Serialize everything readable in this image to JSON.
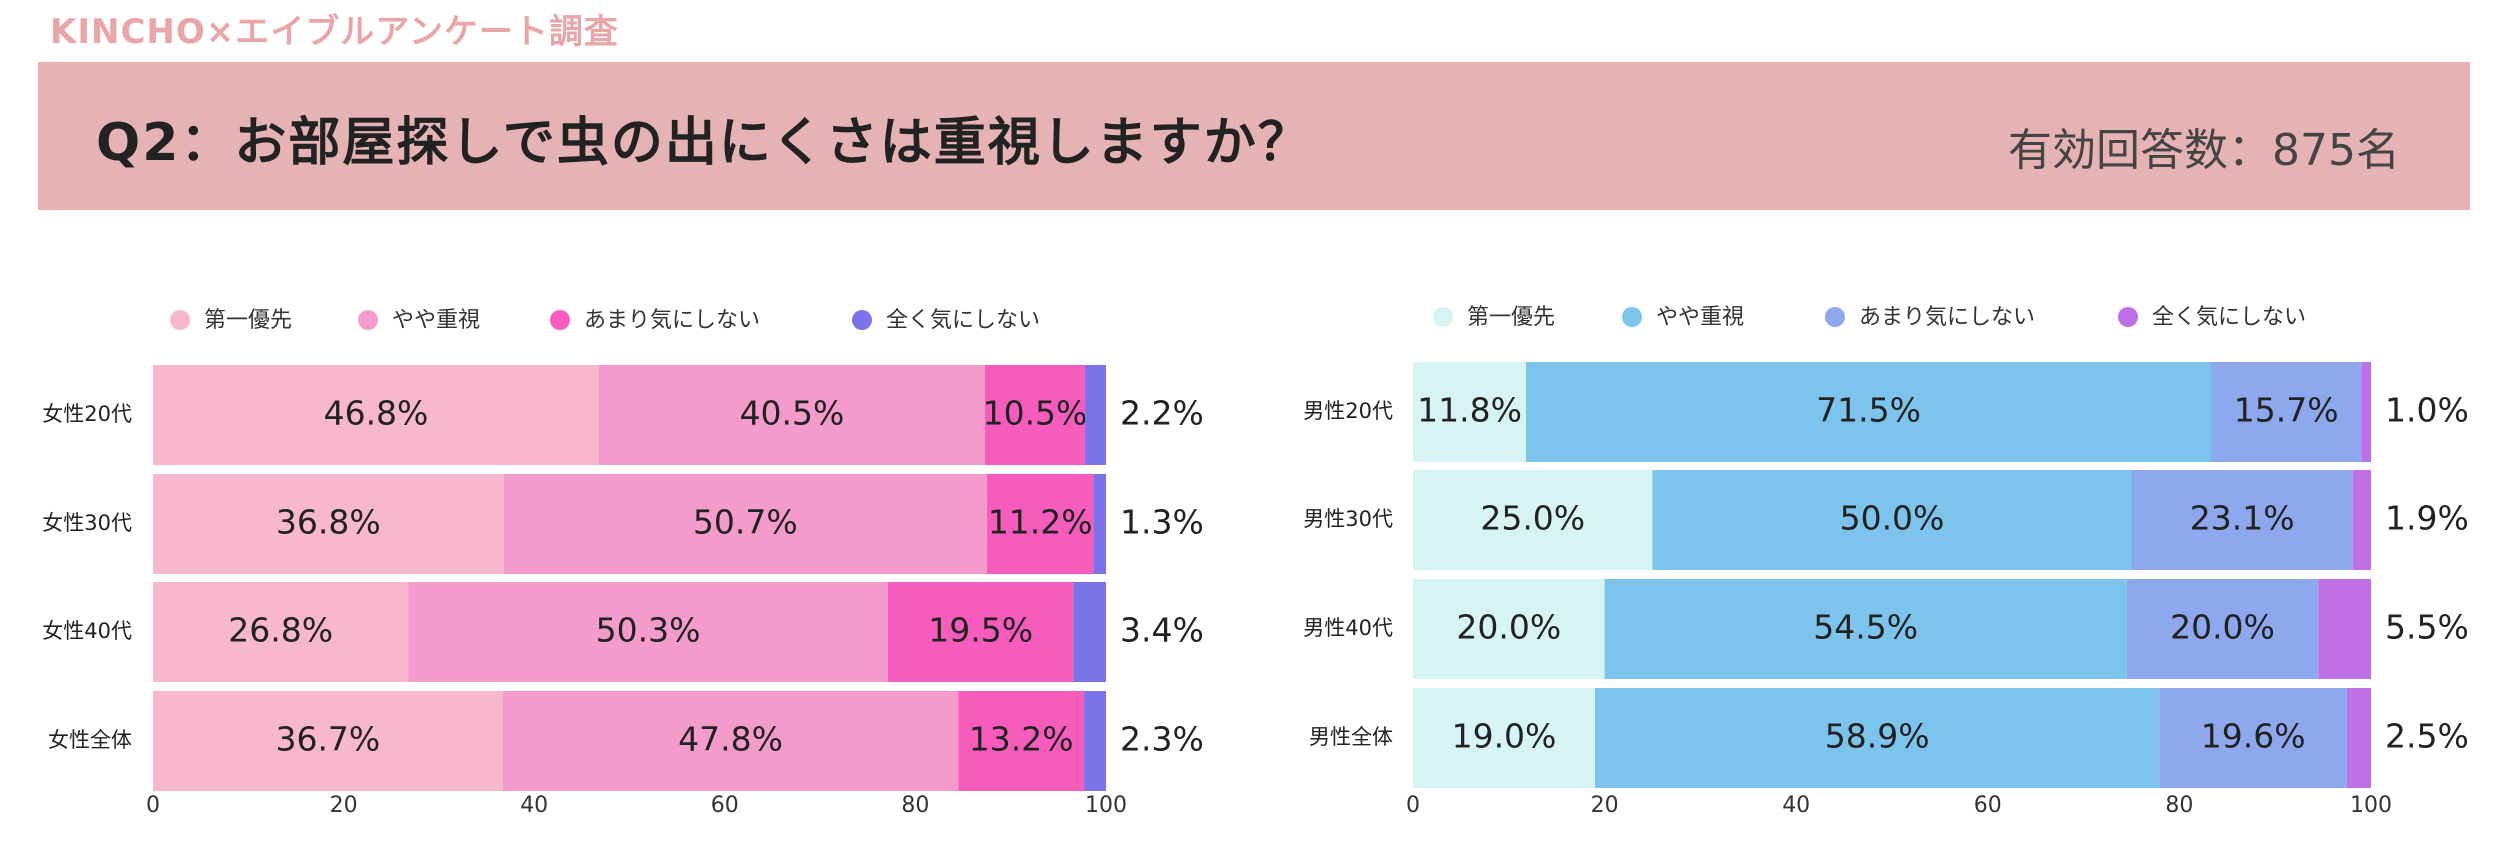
{
  "header": {
    "brand": "KINCHO×エイブルアンケート調査",
    "question": "Q2：お部屋探しで虫の出にくさは重視しますか？",
    "respondents": "有効回答数：875名"
  },
  "chart_data": [
    {
      "type": "bar",
      "orientation": "horizontal",
      "stacked": true,
      "categories": [
        "女性20代",
        "女性30代",
        "女性40代",
        "女性全体"
      ],
      "series": [
        {
          "name": "第一優先",
          "color": "#f8b8cc",
          "values": [
            46.8,
            36.8,
            26.8,
            36.7
          ]
        },
        {
          "name": "やや重視",
          "color": "#f39ccb",
          "values": [
            40.5,
            50.7,
            50.3,
            47.8
          ]
        },
        {
          "name": "あまり気にしない",
          "color": "#f65cbc",
          "values": [
            10.5,
            11.2,
            19.5,
            13.2
          ]
        },
        {
          "name": "全く気にしない",
          "color": "#7b73ea",
          "values": [
            2.2,
            1.3,
            3.4,
            2.3
          ]
        }
      ],
      "xlim": [
        0,
        100
      ],
      "xticks": [
        0,
        20,
        40,
        60,
        80,
        100
      ],
      "legend": "top",
      "grid": false
    },
    {
      "type": "bar",
      "orientation": "horizontal",
      "stacked": true,
      "categories": [
        "男性20代",
        "男性30代",
        "男性40代",
        "男性全体"
      ],
      "series": [
        {
          "name": "第一優先",
          "color": "#d6f4f4",
          "values": [
            11.8,
            25.0,
            20.0,
            19.0
          ]
        },
        {
          "name": "やや重視",
          "color": "#7cc4ec",
          "values": [
            71.5,
            50.0,
            54.5,
            58.9
          ]
        },
        {
          "name": "あまり気にしない",
          "color": "#8ea8ee",
          "values": [
            15.7,
            23.1,
            20.0,
            19.6
          ]
        },
        {
          "name": "全く気にしない",
          "color": "#c070e6",
          "values": [
            1.0,
            1.9,
            5.5,
            2.5
          ]
        }
      ],
      "xlim": [
        0,
        100
      ],
      "xticks": [
        0,
        20,
        40,
        60,
        80,
        100
      ],
      "legend": "top",
      "grid": false
    }
  ]
}
